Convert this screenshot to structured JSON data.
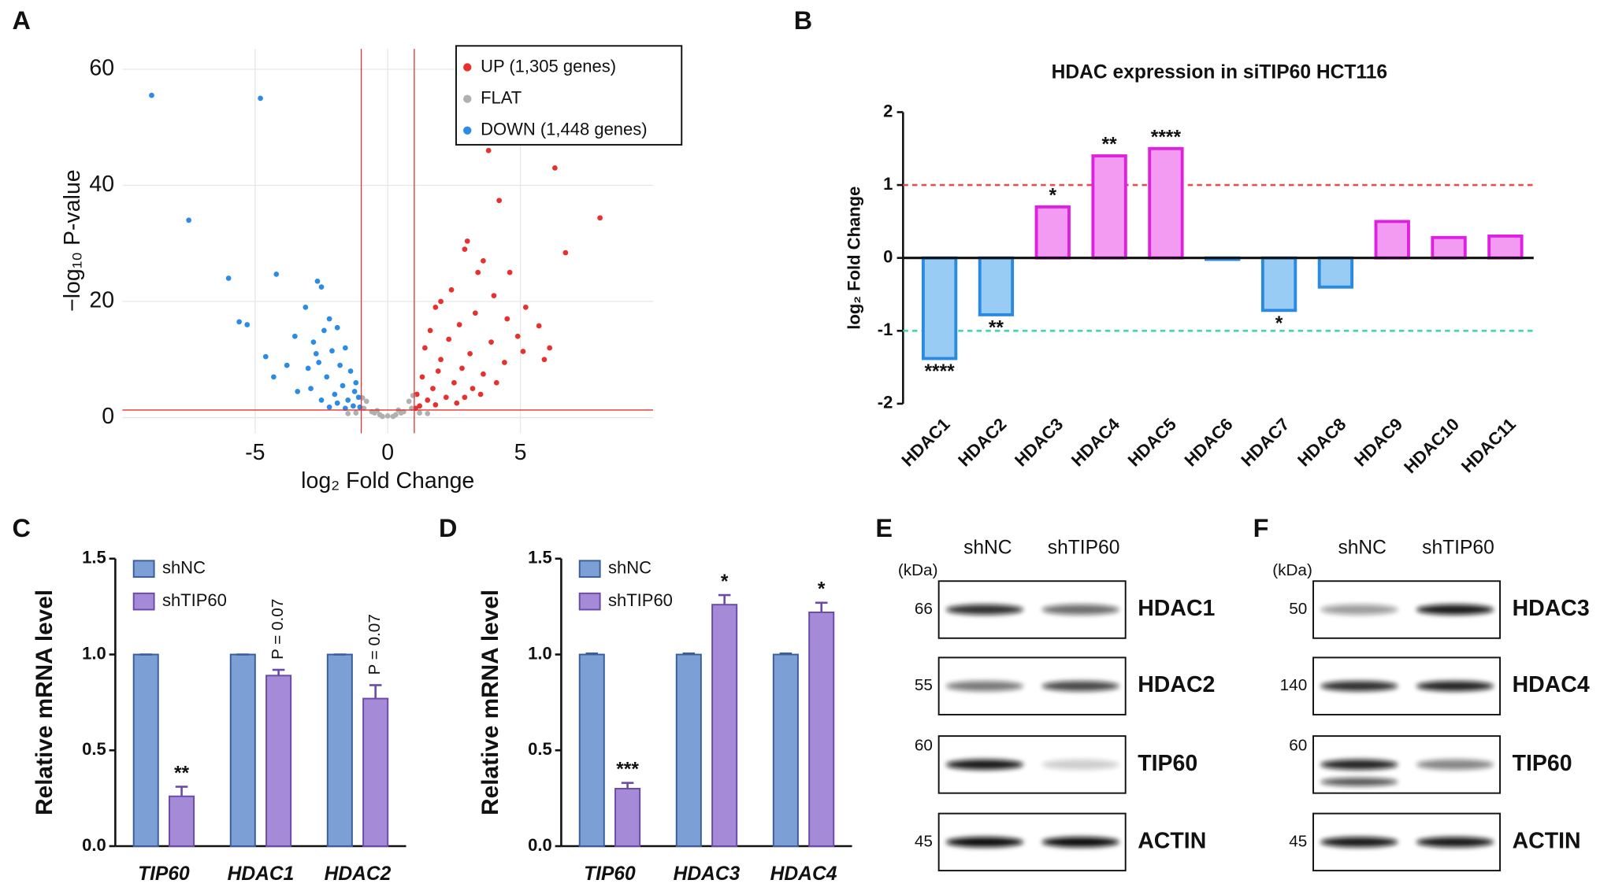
{
  "chart_data": [
    {
      "type": "scatter",
      "panel": "A",
      "xlabel": "log₂ Fold Change",
      "ylabel": "−log₁₀ P-value",
      "xlim": [
        -10,
        10
      ],
      "ylim": [
        -2.7,
        63.5
      ],
      "xticks": [
        -5,
        0,
        5
      ],
      "yticks": [
        0,
        20,
        40,
        60
      ],
      "grid": true,
      "thresholds": {
        "x": [
          -1,
          1
        ],
        "y": 1.3,
        "color": "#e03030"
      },
      "legend": "upper right",
      "series": [
        {
          "name": "UP (1,305 genes)",
          "color": "#e8302e",
          "x": [
            3.8,
            6.3,
            4.2,
            8.0,
            6.7,
            3.0,
            2.9,
            5.2,
            5.7,
            5.1,
            4.0,
            2.4,
            3.6,
            3.4,
            2.0,
            1.8,
            4.5,
            3.3,
            2.7,
            1.6,
            4.9,
            3.9,
            2.3,
            1.4,
            3.1,
            2.0,
            4.4,
            1.9,
            2.8,
            3.6,
            1.3,
            2.5,
            4.1,
            1.7,
            3.2,
            1.1,
            2.2,
            1.5,
            2.9,
            1.2,
            1.8,
            2.6,
            1.05,
            3.5,
            5.9,
            6.1,
            4.6
          ],
          "y": [
            46,
            43,
            37.4,
            34.4,
            28.4,
            30.4,
            29,
            19,
            15.8,
            11.4,
            21,
            22,
            27,
            25,
            20,
            19,
            17,
            18,
            16,
            15,
            14,
            13,
            13.5,
            12,
            11,
            10,
            9.5,
            8,
            8.5,
            7.5,
            7,
            6,
            6,
            5,
            5,
            4,
            3.5,
            3,
            3.5,
            2,
            2.2,
            2.5,
            1.6,
            4,
            10,
            12,
            25
          ]
        },
        {
          "name": "FLAT",
          "color": "#b0b0b0",
          "x": [
            0,
            -0.3,
            0.3,
            -0.6,
            0.6,
            -0.9,
            0.9,
            -0.8,
            0.8,
            -0.5,
            0.5,
            -0.2,
            0.2,
            -1.2,
            1.2,
            -0.95,
            0.95,
            -0.4,
            0.4,
            -1.5,
            1.5
          ],
          "y": [
            0.3,
            0.5,
            0.5,
            1,
            1,
            1.6,
            1.6,
            2.8,
            2.8,
            0.8,
            0.8,
            0.2,
            0.2,
            0.8,
            0.8,
            3.4,
            3.8,
            1.2,
            1.3,
            0.7,
            0.7
          ]
        },
        {
          "name": "DOWN (1,448 genes)",
          "color": "#2b8ce6",
          "x": [
            -8.9,
            -4.8,
            -7.5,
            -6.0,
            -4.2,
            -5.6,
            -5.3,
            -4.6,
            -2.65,
            -2.5,
            -3.1,
            -2.2,
            -1.9,
            -2.4,
            -3.5,
            -2.8,
            -1.6,
            -2.1,
            -3.8,
            -4.3,
            -3.0,
            -2.6,
            -1.8,
            -1.4,
            -2.3,
            -1.2,
            -1.7,
            -2.9,
            -3.4,
            -1.1,
            -1.5,
            -2.0,
            -2.5,
            -1.3,
            -1.9,
            -1.05,
            -1.6,
            -2.2,
            -1.25,
            -2.7
          ],
          "y": [
            55.5,
            55,
            34,
            24,
            24.7,
            16.5,
            16,
            10.5,
            23.5,
            22.5,
            19,
            17,
            15.5,
            15,
            14,
            13,
            12,
            11.5,
            9,
            7,
            8.5,
            9.5,
            9,
            8,
            7,
            6,
            5.5,
            5,
            4.5,
            3.5,
            3,
            4,
            3,
            2,
            2.5,
            1.8,
            1.6,
            1.8,
            4.5,
            11
          ]
        }
      ]
    },
    {
      "type": "bar",
      "panel": "B",
      "title": "HDAC expression in siTIP60 HCT116",
      "ylabel": "log₂ Fold Change",
      "categories": [
        "HDAC1",
        "HDAC2",
        "HDAC3",
        "HDAC4",
        "HDAC5",
        "HDAC6",
        "HDAC7",
        "HDAC8",
        "HDAC9",
        "HDAC10",
        "HDAC11"
      ],
      "values": [
        -1.38,
        -0.78,
        0.7,
        1.4,
        1.5,
        -0.02,
        -0.72,
        -0.4,
        0.5,
        0.28,
        0.3
      ],
      "colors": [
        "#99ccf5",
        "#99ccf5",
        "#f39af3",
        "#f39af3",
        "#f39af3",
        "#99ccf5",
        "#99ccf5",
        "#99ccf5",
        "#f39af3",
        "#f39af3",
        "#f39af3"
      ],
      "edgecolors": [
        "#2a8ae0",
        "#2a8ae0",
        "#e020e0",
        "#e020e0",
        "#e020e0",
        "#2a8ae0",
        "#2a8ae0",
        "#2a8ae0",
        "#e020e0",
        "#e020e0",
        "#e020e0"
      ],
      "significance": [
        "****",
        "**",
        "*",
        "**",
        "****",
        null,
        "*",
        null,
        null,
        null,
        null
      ],
      "ylim": [
        -2,
        2
      ],
      "yticks": [
        -2,
        -1,
        0,
        1,
        2
      ],
      "reference_lines": [
        {
          "value": 1,
          "color": "#e05050"
        },
        {
          "value": -1,
          "color": "#40d8b0"
        }
      ]
    },
    {
      "type": "grouped_bar",
      "panel": "C",
      "ylabel": "Relative mRNA level",
      "categories": [
        "TIP60",
        "HDAC1",
        "HDAC2"
      ],
      "ylim": [
        0,
        1.5
      ],
      "yticks": [
        {
          "value": 0,
          "label": "0.0"
        },
        0.5,
        {
          "value": 1,
          "label": "1.0"
        },
        1.5
      ],
      "legend": "upper left",
      "series": [
        {
          "name": "shNC",
          "color": "#7c9fd6",
          "edgecolor": "#3a5d9c",
          "values": [
            1,
            1,
            1
          ],
          "errors": [
            0,
            0,
            0
          ]
        },
        {
          "name": "shTIP60",
          "color": "#a58ad8",
          "edgecolor": "#6a4aa8",
          "values": [
            0.26,
            0.89,
            0.77
          ],
          "errors": [
            0.05,
            0.03,
            0.07
          ]
        }
      ],
      "annotations": [
        "**",
        "P = 0.07",
        "P = 0.07"
      ]
    },
    {
      "type": "grouped_bar",
      "panel": "D",
      "ylabel": "Relative mRNA level",
      "categories": [
        "TIP60",
        "HDAC3",
        "HDAC4"
      ],
      "ylim": [
        0,
        1.5
      ],
      "yticks": [
        {
          "value": 0,
          "label": "0.0"
        },
        0.5,
        {
          "value": 1,
          "label": "1.0"
        },
        1.5
      ],
      "legend": "upper left",
      "series": [
        {
          "name": "shNC",
          "color": "#7c9fd6",
          "edgecolor": "#3a5d9c",
          "values": [
            1,
            1,
            1
          ],
          "errors": [
            0.005,
            0.005,
            0.005
          ]
        },
        {
          "name": "shTIP60",
          "color": "#a58ad8",
          "edgecolor": "#6a4aa8",
          "values": [
            0.3,
            1.26,
            1.22
          ],
          "errors": [
            0.03,
            0.05,
            0.05
          ]
        }
      ],
      "annotations": [
        "***",
        "*",
        "*"
      ]
    }
  ],
  "blots": [
    {
      "panel": "E",
      "unit": "(kDa)",
      "columns": [
        "shNC",
        "shTIP60"
      ],
      "rows": [
        {
          "marker": "66",
          "label": "HDAC1"
        },
        {
          "marker": "55",
          "label": "HDAC2"
        },
        {
          "marker": "60",
          "label": "TIP60"
        },
        {
          "marker": "45",
          "label": "ACTIN"
        }
      ]
    },
    {
      "panel": "F",
      "unit": "(kDa)",
      "columns": [
        "shNC",
        "shTIP60"
      ],
      "rows": [
        {
          "marker": "50",
          "label": "HDAC3"
        },
        {
          "marker": "140",
          "label": "HDAC4"
        },
        {
          "marker": "60",
          "label": "TIP60"
        },
        {
          "marker": "45",
          "label": "ACTIN"
        }
      ]
    }
  ]
}
